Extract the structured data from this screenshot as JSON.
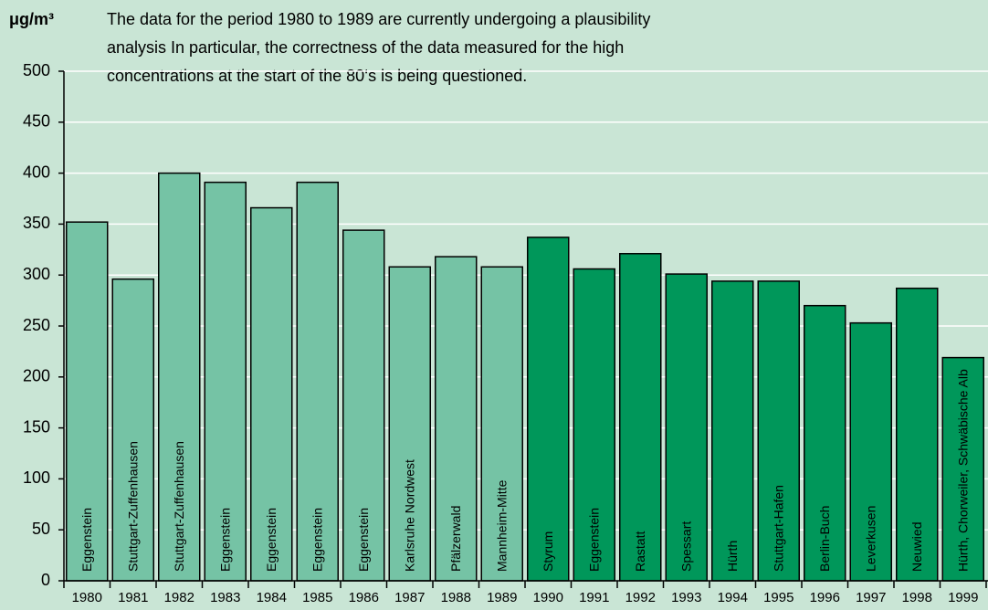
{
  "chart_data": {
    "type": "bar",
    "y_label": "μg/m³",
    "annotation": [
      "The data for the period 1980 to 1989 are currently undergoing a plausibility",
      "analysis In particular, the correctness of the data measured for the high",
      "concentrations at the start of the 80‘s is being questioned."
    ],
    "categories": [
      "1980",
      "1981",
      "1982",
      "1983",
      "1984",
      "1985",
      "1986",
      "1987",
      "1988",
      "1989",
      "1990",
      "1991",
      "1992",
      "1993",
      "1994",
      "1995",
      "1996",
      "1997",
      "1998",
      "1999"
    ],
    "stations": [
      "Eggenstein",
      "Stuttgart-Zuffenhausen",
      "Stuttgart-Zuffenhausen",
      "Eggenstein",
      "Eggenstein",
      "Eggenstein",
      "Eggenstein",
      "Karlsruhe Nordwest",
      "Pfälzerwald",
      "Mannheim-Mitte",
      "Styrum",
      "Eggenstein",
      "Rastatt",
      "Spessart",
      "Hürth",
      "Stuttgart-Hafen",
      "Berlin-Buch",
      "Leverkusen",
      "Neuwied",
      "Hürth, Chorweiler, Schwäbische Alb"
    ],
    "values": [
      352,
      296,
      400,
      391,
      366,
      391,
      344,
      308,
      318,
      308,
      337,
      306,
      321,
      301,
      294,
      294,
      270,
      253,
      287,
      219
    ],
    "colors": [
      "#75c3a5",
      "#75c3a5",
      "#75c3a5",
      "#75c3a5",
      "#75c3a5",
      "#75c3a5",
      "#75c3a5",
      "#75c3a5",
      "#75c3a5",
      "#75c3a5",
      "#00975a",
      "#00975a",
      "#00975a",
      "#00975a",
      "#00975a",
      "#00975a",
      "#00975a",
      "#00975a",
      "#00975a",
      "#00975a"
    ],
    "ylim": [
      0,
      500
    ],
    "yticks": [
      0,
      50,
      100,
      150,
      200,
      250,
      300,
      350,
      400,
      450,
      500
    ],
    "grid": true
  }
}
